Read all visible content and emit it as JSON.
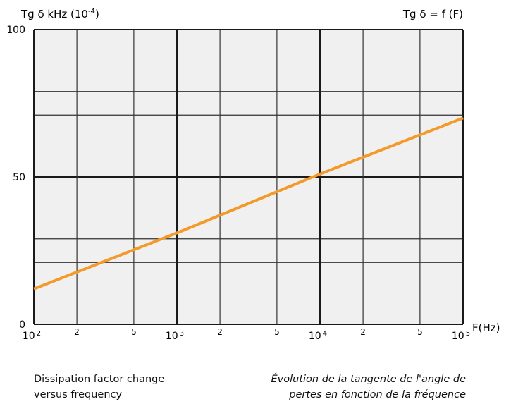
{
  "chart_data": {
    "type": "line",
    "title_left": "Tg δ kHz (10-4)",
    "title_left_main": "Tg δ kHz (10",
    "title_left_exp": "-4",
    "title_left_close": ")",
    "title_right": "Tg δ = f (F)",
    "xlabel": "F(Hz)",
    "x_scale": "log",
    "xlim": [
      100,
      100000
    ],
    "ylim": [
      0,
      100
    ],
    "y_ticks": [
      "0",
      "50",
      "100"
    ],
    "x_ticks": [
      {
        "value": 100,
        "label": "10",
        "sup": "2",
        "major": true
      },
      {
        "value": 200,
        "label": "2",
        "sup": "",
        "major": false
      },
      {
        "value": 500,
        "label": "5",
        "sup": "",
        "major": false
      },
      {
        "value": 1000,
        "label": "10",
        "sup": "3",
        "major": true
      },
      {
        "value": 2000,
        "label": "2",
        "sup": "",
        "major": false
      },
      {
        "value": 5000,
        "label": "5",
        "sup": "",
        "major": false
      },
      {
        "value": 10000,
        "label": "10",
        "sup": "4",
        "major": true
      },
      {
        "value": 20000,
        "label": "2",
        "sup": "",
        "major": false
      },
      {
        "value": 50000,
        "label": "5",
        "sup": "",
        "major": false
      },
      {
        "value": 100000,
        "label": "10",
        "sup": "5",
        "major": true
      }
    ],
    "grid": true,
    "series": [
      {
        "color": "#f39a2b",
        "x": [
          100,
          1000,
          10000,
          100000
        ],
        "y": [
          12,
          31,
          51,
          70
        ]
      }
    ]
  },
  "caption_en": {
    "line1": "Dissipation factor change",
    "line2": "versus frequency"
  },
  "caption_fr": {
    "line1": "Évolution de la tangente de l'angle de",
    "line2": "pertes en fonction de la fréquence"
  }
}
